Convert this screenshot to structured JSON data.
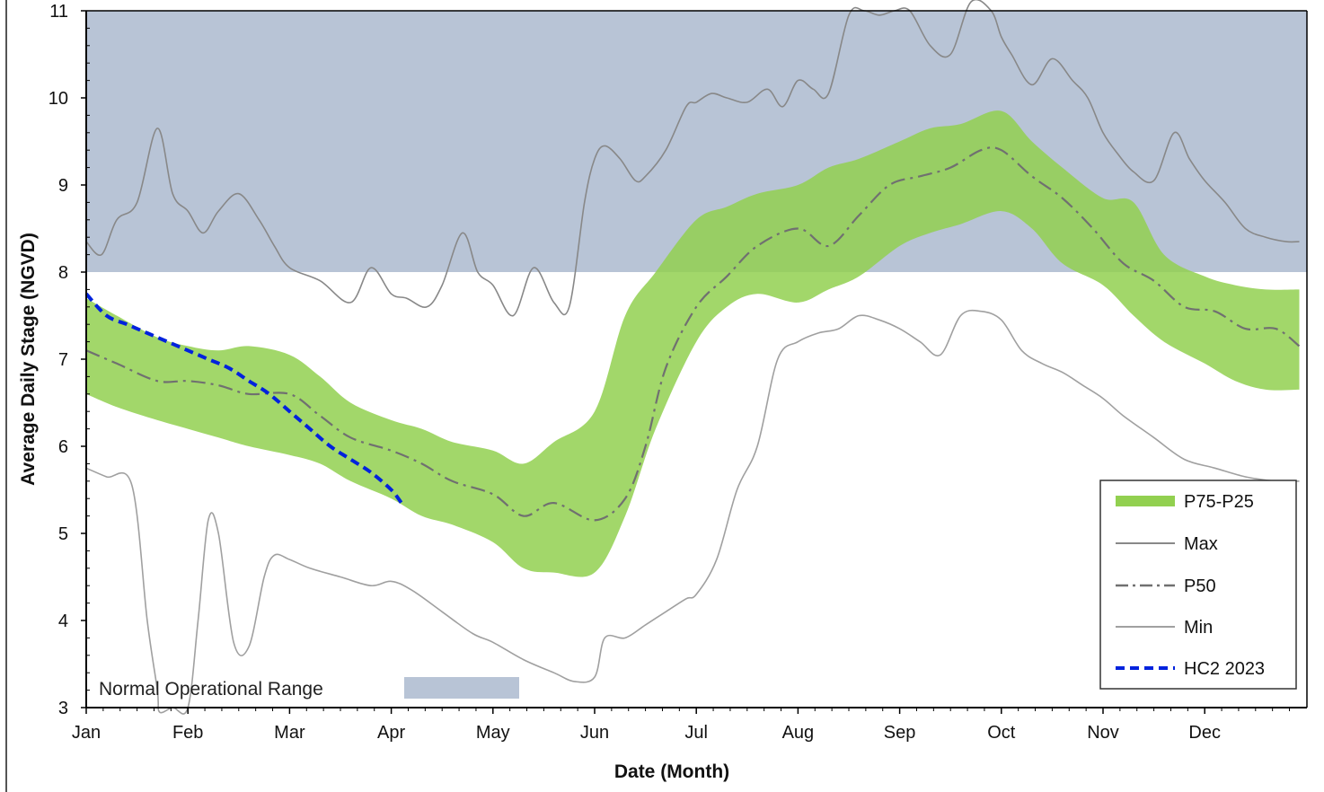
{
  "chart_data": {
    "type": "line",
    "title": "",
    "xlabel": "Date (Month)",
    "ylabel": "Average Daily Stage (NGVD)",
    "ylim": [
      3,
      11
    ],
    "yticks": [
      "3",
      "4",
      "5",
      "6",
      "7",
      "8",
      "9",
      "10",
      "11"
    ],
    "months": [
      "Jan",
      "Feb",
      "Mar",
      "Apr",
      "May",
      "Jun",
      "Jul",
      "Aug",
      "Sep",
      "Oct",
      "Nov",
      "Dec"
    ],
    "normal_operational_range": {
      "label": "Normal Operational Range",
      "ymin": 8,
      "ymax": 11,
      "color": "#b8c4d6"
    },
    "band": {
      "name": "P75-P25",
      "color": "#92d050",
      "x": [
        0,
        0.3,
        0.7,
        1.0,
        1.3,
        1.6,
        2.0,
        2.3,
        2.6,
        3.0,
        3.3,
        3.6,
        4.0,
        4.3,
        4.6,
        5.0,
        5.3,
        5.6,
        6.0,
        6.3,
        6.6,
        7.0,
        7.3,
        7.6,
        8.0,
        8.3,
        8.6,
        9.0,
        9.3,
        9.6,
        10.0,
        10.3,
        10.6,
        11.0,
        11.3,
        11.6,
        11.93
      ],
      "upper": [
        7.7,
        7.5,
        7.25,
        7.15,
        7.1,
        7.15,
        7.05,
        6.8,
        6.5,
        6.3,
        6.2,
        6.05,
        5.95,
        5.8,
        6.05,
        6.4,
        7.5,
        8.0,
        8.6,
        8.75,
        8.9,
        9.0,
        9.2,
        9.3,
        9.5,
        9.65,
        9.7,
        9.85,
        9.5,
        9.2,
        8.85,
        8.8,
        8.2,
        7.95,
        7.85,
        7.8,
        7.8
      ],
      "lower": [
        6.6,
        6.45,
        6.3,
        6.2,
        6.1,
        6.0,
        5.9,
        5.8,
        5.6,
        5.4,
        5.2,
        5.1,
        4.9,
        4.6,
        4.55,
        4.55,
        5.2,
        6.2,
        7.2,
        7.6,
        7.75,
        7.65,
        7.8,
        7.95,
        8.3,
        8.45,
        8.55,
        8.7,
        8.5,
        8.1,
        7.85,
        7.5,
        7.2,
        6.95,
        6.75,
        6.65,
        6.65
      ]
    },
    "series": [
      {
        "name": "Max",
        "color": "#888888",
        "dash": "solid",
        "x": [
          0,
          0.15,
          0.3,
          0.5,
          0.7,
          0.85,
          1.0,
          1.15,
          1.3,
          1.5,
          1.7,
          1.85,
          2.0,
          2.3,
          2.6,
          2.8,
          3.0,
          3.15,
          3.35,
          3.5,
          3.7,
          3.85,
          4.0,
          4.2,
          4.4,
          4.6,
          4.75,
          4.9,
          5.0,
          5.1,
          5.25,
          5.4,
          5.5,
          5.7,
          5.9,
          6.0,
          6.15,
          6.3,
          6.5,
          6.7,
          6.85,
          7.0,
          7.15,
          7.3,
          7.5,
          7.65,
          7.8,
          7.95,
          8.1,
          8.3,
          8.5,
          8.7,
          8.9,
          9.0,
          9.1,
          9.3,
          9.5,
          9.7,
          9.85,
          10.0,
          10.15,
          10.3,
          10.5,
          10.7,
          10.85,
          11.0,
          11.2,
          11.4,
          11.6,
          11.8,
          11.93
        ],
        "y": [
          8.35,
          8.2,
          8.6,
          8.8,
          9.65,
          8.9,
          8.7,
          8.45,
          8.7,
          8.9,
          8.6,
          8.3,
          8.05,
          7.9,
          7.65,
          8.05,
          7.75,
          7.7,
          7.6,
          7.85,
          8.45,
          8.0,
          7.85,
          7.5,
          8.05,
          7.65,
          7.6,
          8.8,
          9.3,
          9.45,
          9.3,
          9.05,
          9.1,
          9.4,
          9.9,
          9.95,
          10.05,
          10.0,
          9.95,
          10.1,
          9.9,
          10.2,
          10.1,
          10.05,
          10.95,
          11.0,
          10.95,
          11.0,
          11.0,
          10.6,
          10.5,
          11.1,
          11.0,
          10.7,
          10.5,
          10.15,
          10.45,
          10.2,
          10.0,
          9.6,
          9.35,
          9.15,
          9.05,
          9.6,
          9.3,
          9.05,
          8.8,
          8.5,
          8.4,
          8.35,
          8.35
        ]
      },
      {
        "name": "P50",
        "color": "#707070",
        "dash": "dashdot",
        "x": [
          0,
          0.3,
          0.7,
          1.0,
          1.3,
          1.6,
          2.0,
          2.3,
          2.6,
          3.0,
          3.3,
          3.6,
          4.0,
          4.3,
          4.6,
          5.0,
          5.3,
          5.5,
          5.7,
          6.0,
          6.3,
          6.6,
          7.0,
          7.3,
          7.6,
          7.9,
          8.2,
          8.5,
          8.8,
          9.0,
          9.3,
          9.6,
          9.9,
          10.2,
          10.5,
          10.8,
          11.1,
          11.4,
          11.7,
          11.93
        ],
        "y": [
          7.1,
          6.95,
          6.75,
          6.75,
          6.7,
          6.6,
          6.6,
          6.35,
          6.1,
          5.95,
          5.8,
          5.6,
          5.45,
          5.2,
          5.35,
          5.15,
          5.4,
          6.0,
          6.9,
          7.6,
          7.95,
          8.3,
          8.5,
          8.3,
          8.65,
          9.0,
          9.1,
          9.2,
          9.4,
          9.4,
          9.1,
          8.85,
          8.5,
          8.1,
          7.9,
          7.6,
          7.55,
          7.35,
          7.35,
          7.15
        ]
      },
      {
        "name": "Min",
        "color": "#a0a0a0",
        "dash": "solid",
        "x": [
          0,
          0.2,
          0.45,
          0.6,
          0.7,
          0.72,
          0.85,
          1.0,
          1.1,
          1.2,
          1.3,
          1.45,
          1.6,
          1.75,
          1.85,
          2.0,
          2.2,
          2.5,
          2.8,
          3.0,
          3.2,
          3.5,
          3.8,
          4.0,
          4.3,
          4.6,
          4.8,
          5.0,
          5.1,
          5.3,
          5.5,
          5.7,
          5.9,
          6.0,
          6.2,
          6.4,
          6.6,
          6.8,
          7.0,
          7.2,
          7.4,
          7.6,
          7.8,
          8.0,
          8.2,
          8.4,
          8.6,
          8.8,
          9.0,
          9.2,
          9.4,
          9.6,
          9.8,
          10.0,
          10.2,
          10.5,
          10.8,
          11.1,
          11.4,
          11.7,
          11.93
        ],
        "y": [
          5.75,
          5.65,
          5.55,
          4.0,
          3.2,
          2.95,
          3.0,
          3.0,
          4.0,
          5.15,
          5.0,
          3.75,
          3.7,
          4.5,
          4.75,
          4.7,
          4.6,
          4.5,
          4.4,
          4.45,
          4.35,
          4.1,
          3.85,
          3.75,
          3.55,
          3.4,
          3.3,
          3.35,
          3.8,
          3.8,
          3.95,
          4.1,
          4.25,
          4.3,
          4.7,
          5.5,
          6.0,
          7.0,
          7.2,
          7.3,
          7.35,
          7.5,
          7.45,
          7.35,
          7.2,
          7.05,
          7.5,
          7.55,
          7.45,
          7.1,
          6.95,
          6.85,
          6.7,
          6.55,
          6.35,
          6.1,
          5.85,
          5.75,
          5.65,
          5.6,
          5.6
        ]
      },
      {
        "name": "HC2 2023",
        "color": "#0022dd",
        "dash": "dashed",
        "x": [
          0,
          0.2,
          0.4,
          0.6,
          0.8,
          1.0,
          1.2,
          1.4,
          1.6,
          1.8,
          2.0,
          2.2,
          2.4,
          2.6,
          2.8,
          3.0,
          3.1
        ],
        "y": [
          7.75,
          7.5,
          7.4,
          7.3,
          7.2,
          7.1,
          7.0,
          6.9,
          6.75,
          6.6,
          6.4,
          6.2,
          6.0,
          5.85,
          5.7,
          5.5,
          5.35
        ]
      }
    ],
    "legend": {
      "position": "bottom-right",
      "entries": [
        "P75-P25",
        "Max",
        "P50",
        "Min",
        "HC2 2023"
      ]
    }
  }
}
